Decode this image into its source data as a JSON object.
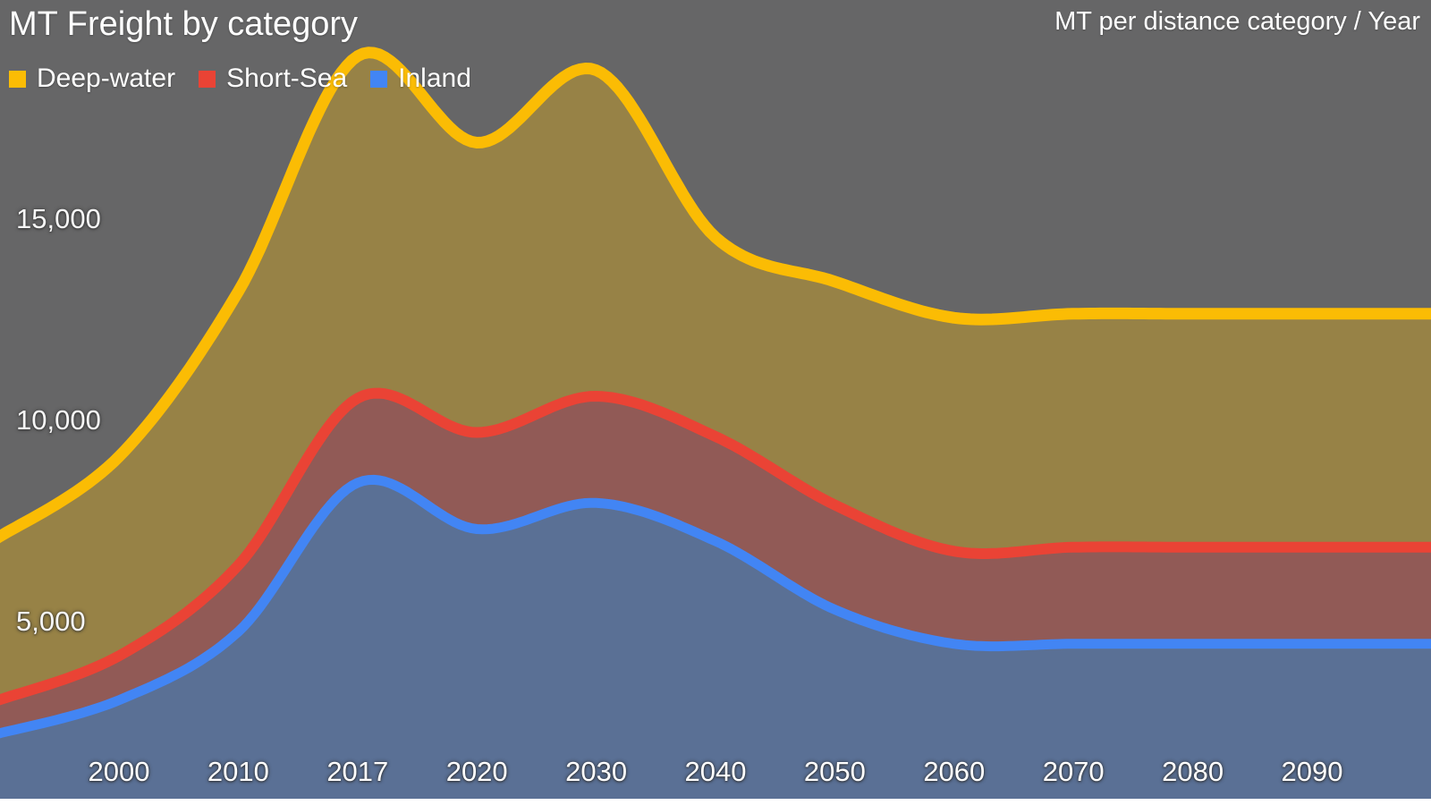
{
  "header": {
    "title": "MT Freight by category",
    "subtitle_right": "MT per distance category / Year"
  },
  "legend": {
    "items": [
      {
        "label": "Deep-water",
        "color": "#FBBC04"
      },
      {
        "label": "Short-Sea",
        "color": "#EA4335"
      },
      {
        "label": "Inland",
        "color": "#4285F4"
      }
    ]
  },
  "colors": {
    "background": "#666667",
    "bottom_strip": "#FFFFFF",
    "text": "#FFFFFF"
  },
  "chart_data": {
    "type": "area",
    "stacked": true,
    "smooth": true,
    "title": "MT Freight by category",
    "xlabel": "",
    "ylabel": "",
    "legend_position": "top-left",
    "grid": false,
    "area_opacity": 0.33,
    "categories": [
      "2000",
      "2010",
      "2017",
      "2020",
      "2030",
      "2040",
      "2050",
      "2060",
      "2070",
      "2080",
      "2090"
    ],
    "series": [
      {
        "name": "Inland",
        "color": "#4285F4",
        "values": [
          3050,
          4750,
          8450,
          7300,
          7950,
          7000,
          5300,
          4450,
          4450,
          4450,
          4450
        ]
      },
      {
        "name": "Short-Sea",
        "color": "#EA4335",
        "values": [
          1100,
          1650,
          2100,
          2400,
          2650,
          2600,
          2600,
          2300,
          2400,
          2400,
          2400
        ]
      },
      {
        "name": "Deep-water",
        "color": "#FBBC04",
        "values": [
          4950,
          6800,
          8500,
          7200,
          8100,
          4950,
          5550,
          5800,
          5800,
          5800,
          5800
        ]
      }
    ],
    "stacked_totals": [
      9100,
      13200,
      19050,
      16900,
      18700,
      14550,
      13450,
      12550,
      12650,
      12650,
      12650
    ],
    "y_ticks": [
      {
        "label": "5,000",
        "value": 5000
      },
      {
        "label": "10,000",
        "value": 10000
      },
      {
        "label": "15,000",
        "value": 15000
      }
    ]
  }
}
